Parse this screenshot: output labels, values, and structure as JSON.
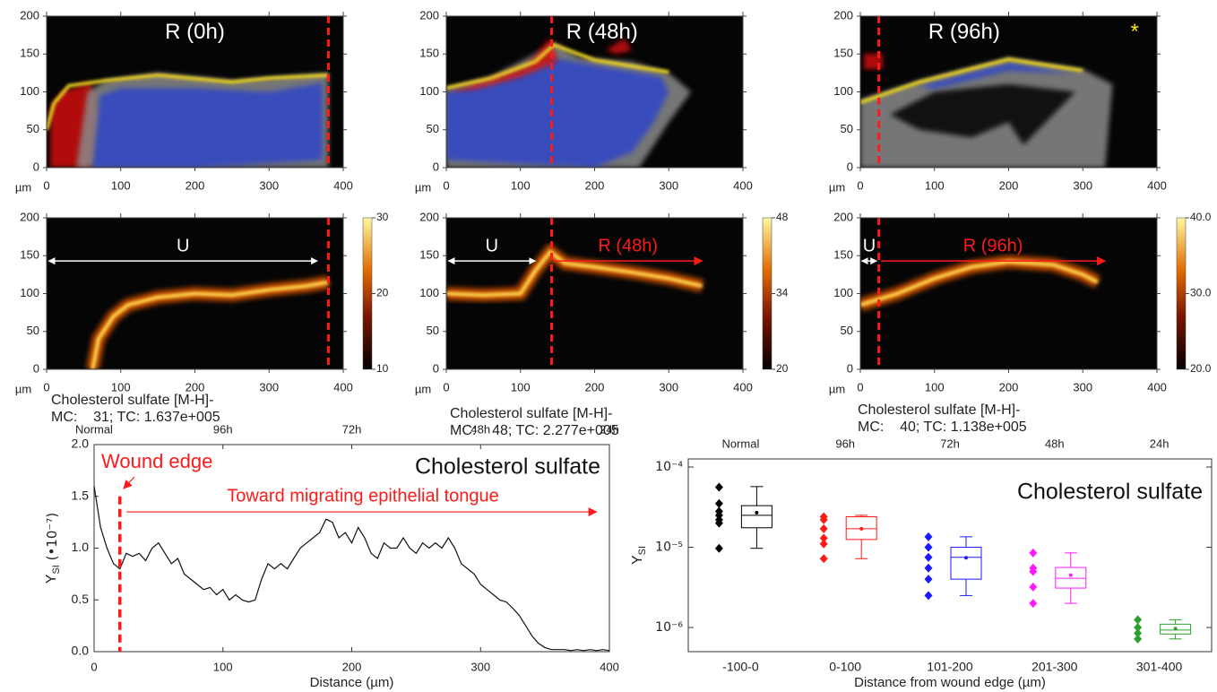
{
  "panels": [
    {
      "title": "R (0h)",
      "unit_label": "µm",
      "xlim": [
        0,
        400
      ],
      "xticks": [
        0,
        100,
        200,
        300,
        400
      ],
      "ylim": [
        0,
        200
      ],
      "yticks": [
        0,
        50,
        100,
        150,
        200
      ]
    },
    {
      "title": "R (48h)",
      "unit_label": "µm",
      "xlim": [
        0,
        400
      ],
      "xticks": [
        0,
        100,
        200,
        300,
        400
      ],
      "ylim": [
        0,
        200
      ],
      "yticks": [
        0,
        50,
        100,
        150,
        200
      ]
    },
    {
      "title": "R (96h)",
      "unit_label": "µm",
      "annotations": [
        "*"
      ],
      "xlim": [
        0,
        400
      ],
      "xticks": [
        0,
        100,
        200,
        300,
        400
      ],
      "ylim": [
        0,
        200
      ],
      "yticks": [
        0,
        50,
        100,
        150,
        200
      ]
    },
    {
      "unit_label": "µm",
      "annotations": [
        "U"
      ],
      "xlim": [
        0,
        400
      ],
      "xticks": [
        0,
        100,
        200,
        300,
        400
      ],
      "ylim": [
        0,
        200
      ],
      "yticks": [
        0,
        50,
        100,
        150,
        200
      ],
      "colorbar": {
        "lim": [
          10,
          30
        ],
        "ticks": [
          10,
          20,
          30
        ]
      },
      "caption": [
        "Cholesterol sulfate [M-H]-",
        "MC:    31; TC: 1.637e+005"
      ]
    },
    {
      "unit_label": "µm",
      "annotations": [
        "U",
        "R (48h)"
      ],
      "xlim": [
        0,
        400
      ],
      "xticks": [
        0,
        100,
        200,
        300,
        400
      ],
      "ylim": [
        0,
        200
      ],
      "yticks": [
        0,
        50,
        100,
        150,
        200
      ],
      "colorbar": {
        "lim": [
          20,
          48
        ],
        "ticks": [
          20,
          34,
          48
        ]
      },
      "caption": [
        "Cholesterol sulfate [M-H]-",
        "MC:    48; TC: 2.277e+005"
      ]
    },
    {
      "unit_label": "µm",
      "annotations": [
        "U",
        "R (96h)"
      ],
      "xlim": [
        0,
        400
      ],
      "xticks": [
        0,
        100,
        200,
        300,
        400
      ],
      "ylim": [
        0,
        200
      ],
      "yticks": [
        0,
        50,
        100,
        150,
        200
      ],
      "colorbar": {
        "lim": [
          20,
          40
        ],
        "ticks": [
          {
            "value": 20,
            "label": "20.0"
          },
          {
            "value": 30,
            "label": "30.0"
          },
          {
            "value": 40,
            "label": "40.0"
          }
        ]
      },
      "caption": [
        "Cholesterol sulfate [M-H]-",
        "MC:    40; TC: 1.138e+005"
      ]
    }
  ],
  "chart_data": [
    {
      "type": "line",
      "x_label": "Distance (µm)",
      "y_label": "Y",
      "y_label_sub": "SI",
      "y_label_suffix": " (•10⁻⁷)",
      "top_labels": [
        "Normal",
        "96h",
        "72h",
        "48h",
        "24h"
      ],
      "annotations": [
        "Wound edge",
        "Toward migrating epithelial tongue",
        "Cholesterol sulfate"
      ],
      "color": "#111111",
      "x": [
        0,
        5,
        10,
        15,
        20,
        25,
        30,
        35,
        40,
        45,
        50,
        55,
        60,
        65,
        70,
        75,
        80,
        85,
        90,
        95,
        100,
        105,
        110,
        115,
        120,
        125,
        130,
        135,
        140,
        145,
        150,
        155,
        160,
        165,
        170,
        175,
        180,
        185,
        190,
        195,
        200,
        205,
        210,
        215,
        220,
        225,
        230,
        235,
        240,
        245,
        250,
        255,
        260,
        265,
        270,
        275,
        280,
        285,
        290,
        295,
        300,
        305,
        310,
        315,
        320,
        325,
        330,
        335,
        340,
        345,
        350,
        355,
        360,
        365,
        370,
        375,
        380,
        385,
        390,
        395,
        400
      ],
      "values": [
        1.6,
        1.2,
        1.0,
        0.85,
        0.8,
        0.95,
        0.92,
        0.95,
        0.88,
        1.0,
        1.05,
        0.95,
        0.85,
        0.9,
        0.75,
        0.7,
        0.65,
        0.6,
        0.62,
        0.55,
        0.6,
        0.5,
        0.55,
        0.5,
        0.48,
        0.5,
        0.7,
        0.85,
        0.8,
        0.85,
        0.8,
        0.9,
        1.0,
        1.05,
        1.1,
        1.15,
        1.28,
        1.25,
        1.1,
        1.15,
        1.05,
        1.2,
        1.1,
        0.95,
        0.9,
        1.05,
        1.0,
        1.0,
        1.1,
        1.0,
        0.95,
        1.05,
        1.0,
        1.05,
        1.0,
        1.1,
        1.0,
        0.85,
        0.8,
        0.75,
        0.65,
        0.6,
        0.55,
        0.5,
        0.48,
        0.42,
        0.35,
        0.25,
        0.15,
        0.08,
        0.04,
        0.02,
        0.02,
        0.02,
        0.01,
        0.02,
        0.01,
        0.02,
        0.01,
        0.02,
        0.01
      ],
      "xlim": [
        0,
        400
      ],
      "xticks": [
        0,
        100,
        200,
        300,
        400
      ],
      "ylim": [
        0,
        2
      ],
      "yticks": [
        {
          "value": 0,
          "label": "0.0"
        },
        0.5,
        {
          "value": 1,
          "label": "1.0"
        },
        1.5,
        {
          "value": 2,
          "label": "2.0"
        }
      ]
    },
    {
      "type": "box",
      "title": "Cholesterol sulfate",
      "x_label": "Distance from wound edge (µm)",
      "y_label": "Y",
      "y_label_sub": "SI",
      "top_labels": [
        "Normal",
        "96h",
        "72h",
        "48h",
        "24h"
      ],
      "categories": [
        "-100-0",
        "0-100",
        "101-200",
        "201-300",
        "301-400"
      ],
      "log_y": true,
      "ylim": [
        5e-07,
        0.000126
      ],
      "yticks": [
        {
          "value": 1e-06,
          "label": "10⁻⁶"
        },
        {
          "value": 1e-05,
          "label": "10⁻⁵"
        },
        {
          "value": 0.0001,
          "label": "10⁻⁴"
        }
      ],
      "groups": [
        {
          "color": "#000000",
          "points": [
            5.6e-05,
            3.5e-05,
            2.8e-05,
            2.5e-05,
            2.2e-05,
            2e-05,
            9.7e-06
          ],
          "whislo": 9.7e-06,
          "q1": 1.75e-05,
          "median": 2.5e-05,
          "q3": 3.3e-05,
          "whishi": 5.7e-05,
          "mean": 2.7e-05
        },
        {
          "color": "#ff1a1a",
          "points": [
            2.4e-05,
            2.2e-05,
            1.7e-05,
            1.3e-05,
            1.1e-05,
            7.2e-06
          ],
          "whislo": 7.2e-06,
          "q1": 1.25e-05,
          "median": 1.7e-05,
          "q3": 2.4e-05,
          "whishi": 2.5e-05,
          "mean": 1.7e-05
        },
        {
          "color": "#1a1aff",
          "points": [
            1.35e-05,
            1e-05,
            7.5e-06,
            5.5e-06,
            4e-06,
            2.5e-06
          ],
          "whislo": 2.5e-06,
          "q1": 4e-06,
          "median": 7.5e-06,
          "q3": 1e-05,
          "whishi": 1.35e-05,
          "mean": 7.4e-06
        },
        {
          "color": "#ff1aff",
          "points": [
            8.5e-06,
            5.5e-06,
            5e-06,
            3.2e-06,
            2e-06
          ],
          "whislo": 2e-06,
          "q1": 3.1e-06,
          "median": 4.1e-06,
          "q3": 5.6e-06,
          "whishi": 8.5e-06,
          "mean": 4.5e-06
        },
        {
          "color": "#2ca02c",
          "points": [
            1.25e-06,
            1e-06,
            8.5e-07,
            7.2e-07
          ],
          "whislo": 7.2e-07,
          "q1": 8.3e-07,
          "median": 9.3e-07,
          "q3": 1.1e-06,
          "whishi": 1.25e-06,
          "mean": 9.7e-07
        }
      ]
    }
  ]
}
